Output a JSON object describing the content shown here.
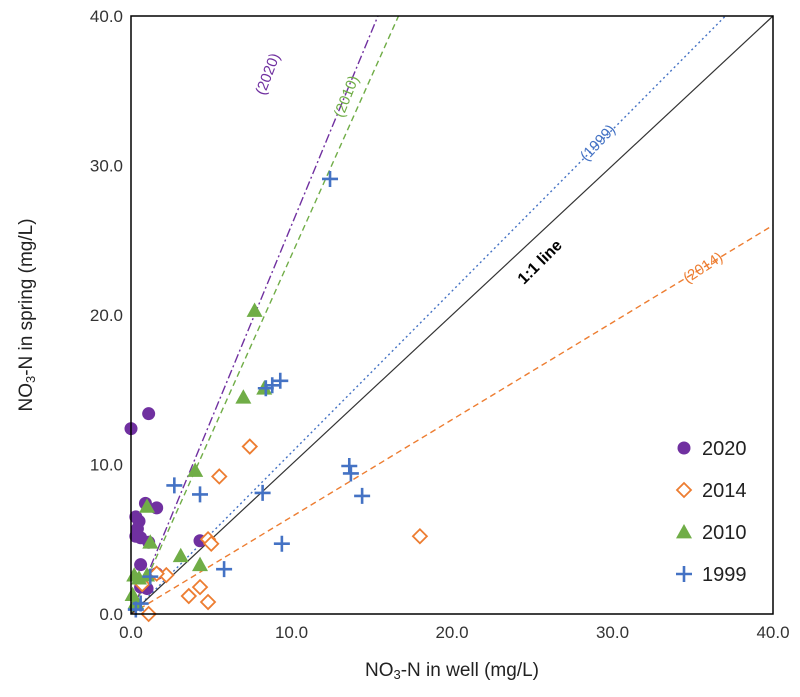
{
  "chart_data": {
    "type": "scatter",
    "xlabel_main": "NO",
    "xlabel_sub": "3",
    "xlabel_rest": "-N in well (mg/L)",
    "ylabel_main": "NO",
    "ylabel_sub": "3",
    "ylabel_rest": "-N in spring (mg/L)",
    "xlim": [
      0,
      40
    ],
    "ylim": [
      0,
      40
    ],
    "x_ticks": [
      "0.0",
      "10.0",
      "20.0",
      "30.0",
      "40.0"
    ],
    "y_ticks": [
      "0.0",
      "10.0",
      "20.0",
      "30.0",
      "40.0"
    ],
    "legend_position": "bottom-right",
    "reference_line": {
      "label": "1:1 line",
      "slope": 1,
      "color": "#333333"
    },
    "series": [
      {
        "name": "2020",
        "marker": "circle",
        "color": "#7030a0",
        "points": [
          [
            0.0,
            12.4
          ],
          [
            1.1,
            13.4
          ],
          [
            0.3,
            6.5
          ],
          [
            0.5,
            6.2
          ],
          [
            0.4,
            5.7
          ],
          [
            0.3,
            5.2
          ],
          [
            0.6,
            5.1
          ],
          [
            0.9,
            7.4
          ],
          [
            1.6,
            7.1
          ],
          [
            1.1,
            4.8
          ],
          [
            0.6,
            3.3
          ],
          [
            1.6,
            2.7
          ],
          [
            1.0,
            1.7
          ],
          [
            4.3,
            4.9
          ],
          [
            0.6,
            1.8
          ]
        ]
      },
      {
        "name": "2014",
        "marker": "diamond-open",
        "color": "#ed7d31",
        "points": [
          [
            7.4,
            11.2
          ],
          [
            5.5,
            9.2
          ],
          [
            4.8,
            5.0
          ],
          [
            5.0,
            4.7
          ],
          [
            2.2,
            2.6
          ],
          [
            1.6,
            2.7
          ],
          [
            4.3,
            1.8
          ],
          [
            3.6,
            1.2
          ],
          [
            4.8,
            0.8
          ],
          [
            1.1,
            0.0
          ],
          [
            18.0,
            5.2
          ],
          [
            0.7,
            2.0
          ]
        ]
      },
      {
        "name": "2010",
        "marker": "triangle",
        "color": "#70ad47",
        "points": [
          [
            7.7,
            20.3
          ],
          [
            7.0,
            14.5
          ],
          [
            8.3,
            15.1
          ],
          [
            4.0,
            9.6
          ],
          [
            1.0,
            7.2
          ],
          [
            1.2,
            4.8
          ],
          [
            3.1,
            3.9
          ],
          [
            4.3,
            3.3
          ],
          [
            0.2,
            2.6
          ],
          [
            0.5,
            2.4
          ],
          [
            0.1,
            1.3
          ],
          [
            0.3,
            0.8
          ],
          [
            1.0,
            2.6
          ]
        ]
      },
      {
        "name": "1999",
        "marker": "plus",
        "color": "#4472c4",
        "points": [
          [
            12.4,
            29.1
          ],
          [
            9.3,
            15.6
          ],
          [
            8.8,
            15.3
          ],
          [
            8.4,
            15.1
          ],
          [
            2.7,
            8.6
          ],
          [
            4.3,
            8.0
          ],
          [
            8.2,
            8.1
          ],
          [
            13.6,
            9.9
          ],
          [
            13.7,
            9.4
          ],
          [
            14.4,
            7.9
          ],
          [
            9.4,
            4.7
          ],
          [
            5.8,
            3.0
          ],
          [
            1.2,
            2.5
          ],
          [
            0.6,
            0.7
          ],
          [
            0.3,
            0.3
          ]
        ]
      }
    ],
    "trendlines": [
      {
        "label": "(2020)",
        "slope": 2.6,
        "color": "#7030a0",
        "dash": "9 3 2 3",
        "label_x": 8.8,
        "label_y": 36.0,
        "label_angle": -69
      },
      {
        "label": "(2010)",
        "slope": 2.4,
        "color": "#70ad47",
        "dash": "6 4",
        "label_x": 13.7,
        "label_y": 34.5,
        "label_angle": -68
      },
      {
        "label": "(1999)",
        "slope": 1.08,
        "color": "#4472c4",
        "dash": "2 3",
        "label_x": 29.3,
        "label_y": 31.3,
        "label_angle": -47
      },
      {
        "label": "(2014)",
        "slope": 0.65,
        "color": "#ed7d31",
        "dash": "6 4",
        "label_x": 35.8,
        "label_y": 22.9,
        "label_angle": -33
      }
    ],
    "one_to_one_label_pos": [
      25.7,
      23.3
    ],
    "one_to_one_label_angle": -45
  }
}
